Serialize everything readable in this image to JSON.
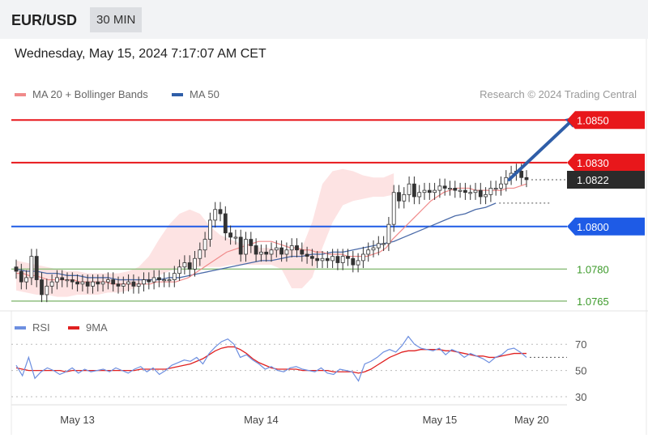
{
  "header": {
    "symbol": "EUR/USD",
    "interval": "30 MIN",
    "datetime": "Wednesday, May 15, 2024 7:17:07 AM CET"
  },
  "legend": {
    "ma20_label": "MA 20 + Bollinger Bands",
    "ma50_label": "MA 50",
    "credit": "Research © 2024 Trading Central",
    "rsi_label": "RSI",
    "rsi_ma_label": "9MA"
  },
  "colors": {
    "resistance": "#e8171b",
    "pivot": "#1e5be6",
    "support": "#8fbf7f",
    "support_text": "#3c9a2a",
    "ma20": "#f08a8a",
    "bands_fill": "#fde3e3",
    "ma50": "#4a6aa8",
    "candle": "#333333",
    "last_price_bg": "#2b2b2b",
    "arrow": "#2f5ea8",
    "rsi": "#6d8fe0",
    "rsi_ma": "#e02020",
    "grid_dotted": "#bbbbbb"
  },
  "chart_data": {
    "type": "candlestick",
    "title": "EUR/USD",
    "interval": "30 MIN",
    "x_ticks": [
      "May 13",
      "May 14",
      "May 15",
      "May 20"
    ],
    "x_tick_index": [
      12,
      48,
      83,
      101
    ],
    "price_range": [
      1.076,
      1.086
    ],
    "levels": [
      {
        "value": 1.085,
        "label": "1.0850",
        "role": "resistance"
      },
      {
        "value": 1.083,
        "label": "1.0830",
        "role": "resistance"
      },
      {
        "value": 1.08,
        "label": "1.0800",
        "role": "pivot"
      },
      {
        "value": 1.078,
        "label": "1.0780",
        "role": "support"
      },
      {
        "value": 1.0765,
        "label": "1.0765",
        "role": "support"
      }
    ],
    "last_price": {
      "value": 1.0822,
      "label": "1.0822"
    },
    "projection": {
      "from": [
        95,
        1.0822
      ],
      "to": [
        102,
        1.085
      ]
    },
    "closes": [
      1.0779,
      1.0774,
      1.0776,
      1.0786,
      1.0775,
      1.0768,
      1.0772,
      1.0774,
      1.0776,
      1.0775,
      1.0775,
      1.0774,
      1.0773,
      1.0774,
      1.0772,
      1.0774,
      1.0773,
      1.0774,
      1.0775,
      1.0773,
      1.0772,
      1.0773,
      1.0774,
      1.0772,
      1.0773,
      1.0775,
      1.0774,
      1.0776,
      1.0775,
      1.0775,
      1.0775,
      1.0778,
      1.0781,
      1.0783,
      1.078,
      1.0785,
      1.0789,
      1.0794,
      1.0803,
      1.0808,
      1.0806,
      1.0797,
      1.0795,
      1.0795,
      1.0787,
      1.0794,
      1.0791,
      1.0787,
      1.0788,
      1.0787,
      1.0789,
      1.079,
      1.0787,
      1.0789,
      1.0791,
      1.0789,
      1.0787,
      1.0786,
      1.0785,
      1.0784,
      1.0785,
      1.0784,
      1.0786,
      1.0783,
      1.0786,
      1.0785,
      1.0782,
      1.0784,
      1.0787,
      1.0789,
      1.079,
      1.0792,
      1.0792,
      1.0801,
      1.0816,
      1.0812,
      1.0815,
      1.082,
      1.0814,
      1.0816,
      1.0817,
      1.0816,
      1.0817,
      1.0819,
      1.0818,
      1.0818,
      1.0817,
      1.0817,
      1.0816,
      1.0816,
      1.0817,
      1.0814,
      1.0815,
      1.0818,
      1.0818,
      1.082,
      1.0823,
      1.0825,
      1.0826,
      1.0823,
      1.0822
    ],
    "ma20": [
      1.0778,
      1.0778,
      1.0777,
      1.0777,
      1.0776,
      1.0775,
      1.0775,
      1.0775,
      1.0775,
      1.0775,
      1.0774,
      1.0774,
      1.0774,
      1.0774,
      1.0774,
      1.0773,
      1.0773,
      1.0773,
      1.0773,
      1.0773,
      1.0773,
      1.0773,
      1.0774,
      1.0774,
      1.0774,
      1.0774,
      1.0775,
      1.0776,
      1.0778,
      1.078,
      1.0782,
      1.0784,
      1.0786,
      1.0788,
      1.0789,
      1.079,
      1.0791,
      1.0792,
      1.0793,
      1.0793,
      1.0793,
      1.0792,
      1.0791,
      1.079,
      1.079,
      1.0789,
      1.0789,
      1.0788,
      1.0788,
      1.0787,
      1.0787,
      1.0787,
      1.0786,
      1.0786,
      1.0786,
      1.0786,
      1.0787,
      1.0788,
      1.079,
      1.0794,
      1.0797,
      1.08,
      1.0803,
      1.0806,
      1.0809,
      1.0812,
      1.0814,
      1.0816,
      1.0817,
      1.0818,
      1.0818,
      1.0818,
      1.0817,
      1.0817,
      1.0817,
      1.0817,
      1.0817,
      1.0818,
      1.0818,
      1.0819,
      1.082
    ],
    "ma50": [
      1.078,
      1.0779,
      1.0779,
      1.0778,
      1.0778,
      1.0777,
      1.0777,
      1.0776,
      1.0776,
      1.0776,
      1.0775,
      1.0775,
      1.0775,
      1.0775,
      1.0775,
      1.0776,
      1.0776,
      1.0777,
      1.0778,
      1.0779,
      1.078,
      1.0781,
      1.0782,
      1.0783,
      1.0784,
      1.0784,
      1.0785,
      1.0786,
      1.0786,
      1.0787,
      1.0787,
      1.0788,
      1.0788,
      1.0789,
      1.079,
      1.0791,
      1.0792,
      1.0793,
      1.0795,
      1.0797,
      1.0799,
      1.0801,
      1.0803,
      1.0805,
      1.0806,
      1.0808,
      1.0809,
      1.0811
    ],
    "bb_upper": [
      1.0784,
      1.0783,
      1.0782,
      1.0781,
      1.078,
      1.0779,
      1.0779,
      1.0778,
      1.0778,
      1.0778,
      1.0778,
      1.0779,
      1.0781,
      1.0786,
      1.0794,
      1.0801,
      1.0806,
      1.0808,
      1.0806,
      1.08,
      1.0796,
      1.0794,
      1.0792,
      1.0791,
      1.079,
      1.079,
      1.0789,
      1.0789,
      1.079,
      1.0802,
      1.082,
      1.0826,
      1.0827,
      1.0826,
      1.0824,
      1.0823,
      1.0823,
      1.0825
    ],
    "bb_lower": [
      1.077,
      1.0769,
      1.0768,
      1.0768,
      1.0767,
      1.0767,
      1.0768,
      1.0768,
      1.0768,
      1.0769,
      1.0769,
      1.077,
      1.0772,
      1.0775,
      1.0777,
      1.0779,
      1.0781,
      1.0781,
      1.0781,
      1.0781,
      1.0781,
      1.0782,
      1.0782,
      1.0782,
      1.0782,
      1.0782,
      1.078,
      1.0771,
      1.0771,
      1.0776,
      1.079,
      1.0802,
      1.081,
      1.0812,
      1.0813,
      1.0814,
      1.0814,
      1.0815
    ],
    "rsi": {
      "y_ticks": [
        70,
        50,
        30
      ],
      "range": [
        22,
        80
      ],
      "values": [
        54,
        46,
        60,
        44,
        49,
        52,
        50,
        47,
        49,
        52,
        48,
        51,
        49,
        50,
        51,
        49,
        52,
        50,
        48,
        51,
        53,
        49,
        52,
        47,
        50,
        54,
        56,
        58,
        57,
        60,
        55,
        63,
        68,
        72,
        74,
        70,
        60,
        62,
        58,
        55,
        51,
        53,
        50,
        49,
        52,
        53,
        51,
        50,
        49,
        52,
        48,
        47,
        51,
        50,
        49,
        42,
        55,
        57,
        60,
        64,
        66,
        64,
        69,
        76,
        70,
        67,
        66,
        65,
        67,
        62,
        66,
        64,
        60,
        63,
        61,
        59,
        56,
        60,
        62,
        66,
        67,
        64,
        60
      ],
      "ma": [
        52,
        51,
        50,
        50,
        50,
        50,
        50,
        50,
        49,
        50,
        50,
        50,
        50,
        50,
        50,
        50,
        50,
        50,
        50,
        50,
        51,
        51,
        51,
        51,
        51,
        52,
        53,
        54,
        55,
        57,
        59,
        62,
        65,
        67,
        68,
        68,
        66,
        63,
        59,
        56,
        54,
        52,
        51,
        51,
        51,
        51,
        50,
        50,
        50,
        50,
        50,
        49,
        49,
        49,
        49,
        48,
        49,
        51,
        54,
        57,
        60,
        62,
        64,
        65,
        65,
        66,
        66,
        66,
        66,
        65,
        65,
        64,
        63,
        62,
        61,
        61,
        60,
        60,
        61,
        62,
        63,
        63,
        63
      ]
    }
  }
}
